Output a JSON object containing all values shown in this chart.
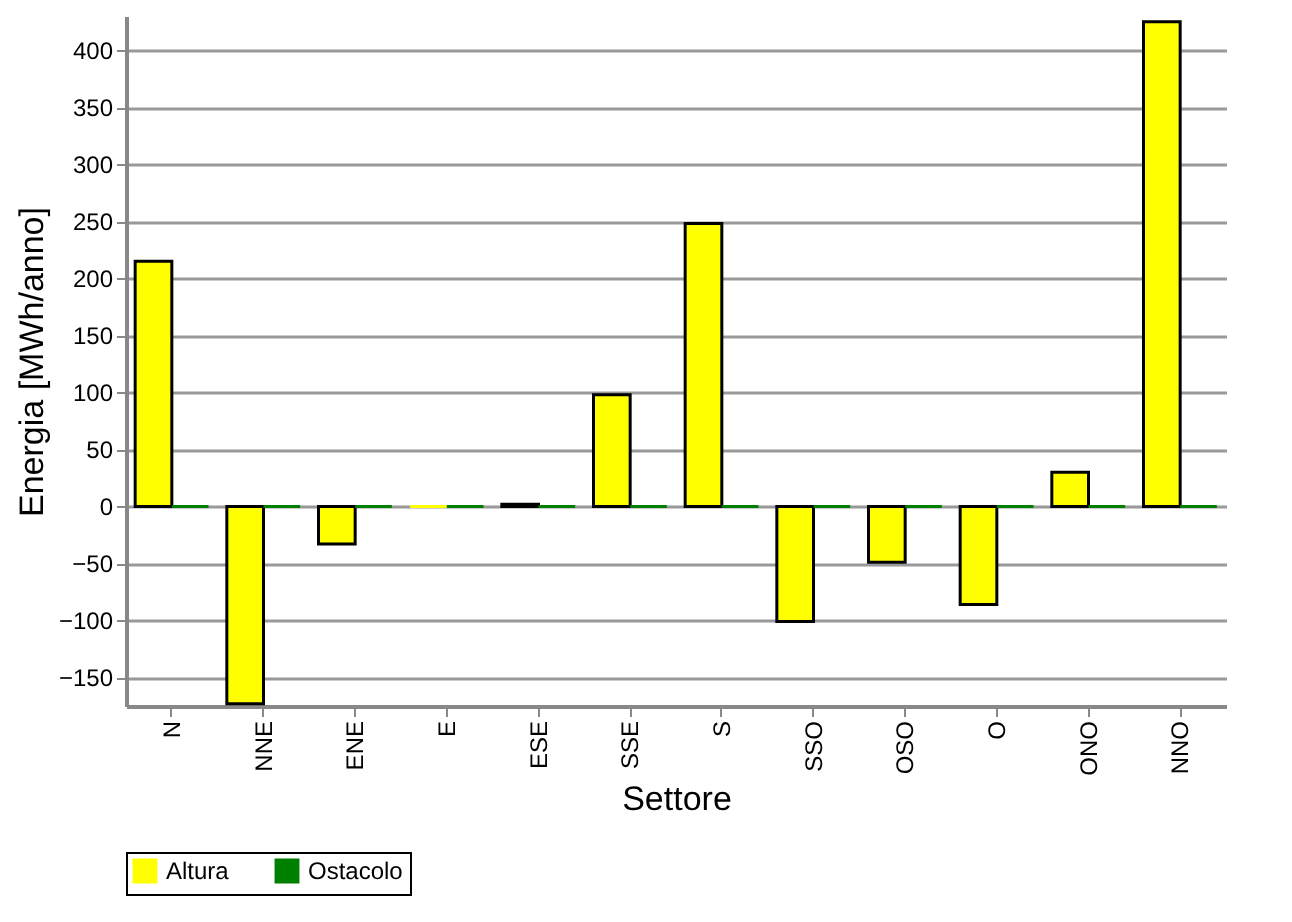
{
  "chart_data": {
    "type": "bar",
    "xlabel": "Settore",
    "ylabel": "Energia [MWh/anno]",
    "categories": [
      "N",
      "NNE",
      "ENE",
      "E",
      "ESE",
      "SSE",
      "S",
      "SSO",
      "OSO",
      "O",
      "ONO",
      "NNO"
    ],
    "series": [
      {
        "name": "Altura",
        "color": "#ffff00",
        "values": [
          215,
          -173,
          -33,
          0,
          2,
          98,
          248,
          -101,
          -49,
          -86,
          30,
          425
        ]
      },
      {
        "name": "Ostacolo",
        "color": "#008000",
        "values": [
          0,
          0,
          0,
          0,
          0,
          0,
          0,
          0,
          0,
          0,
          0,
          0
        ]
      }
    ],
    "ylim": [
      -175,
      430
    ],
    "yticks": [
      -150,
      -100,
      -50,
      0,
      50,
      100,
      150,
      200,
      250,
      300,
      350,
      400
    ],
    "grid": "y",
    "legend": "bottom"
  }
}
